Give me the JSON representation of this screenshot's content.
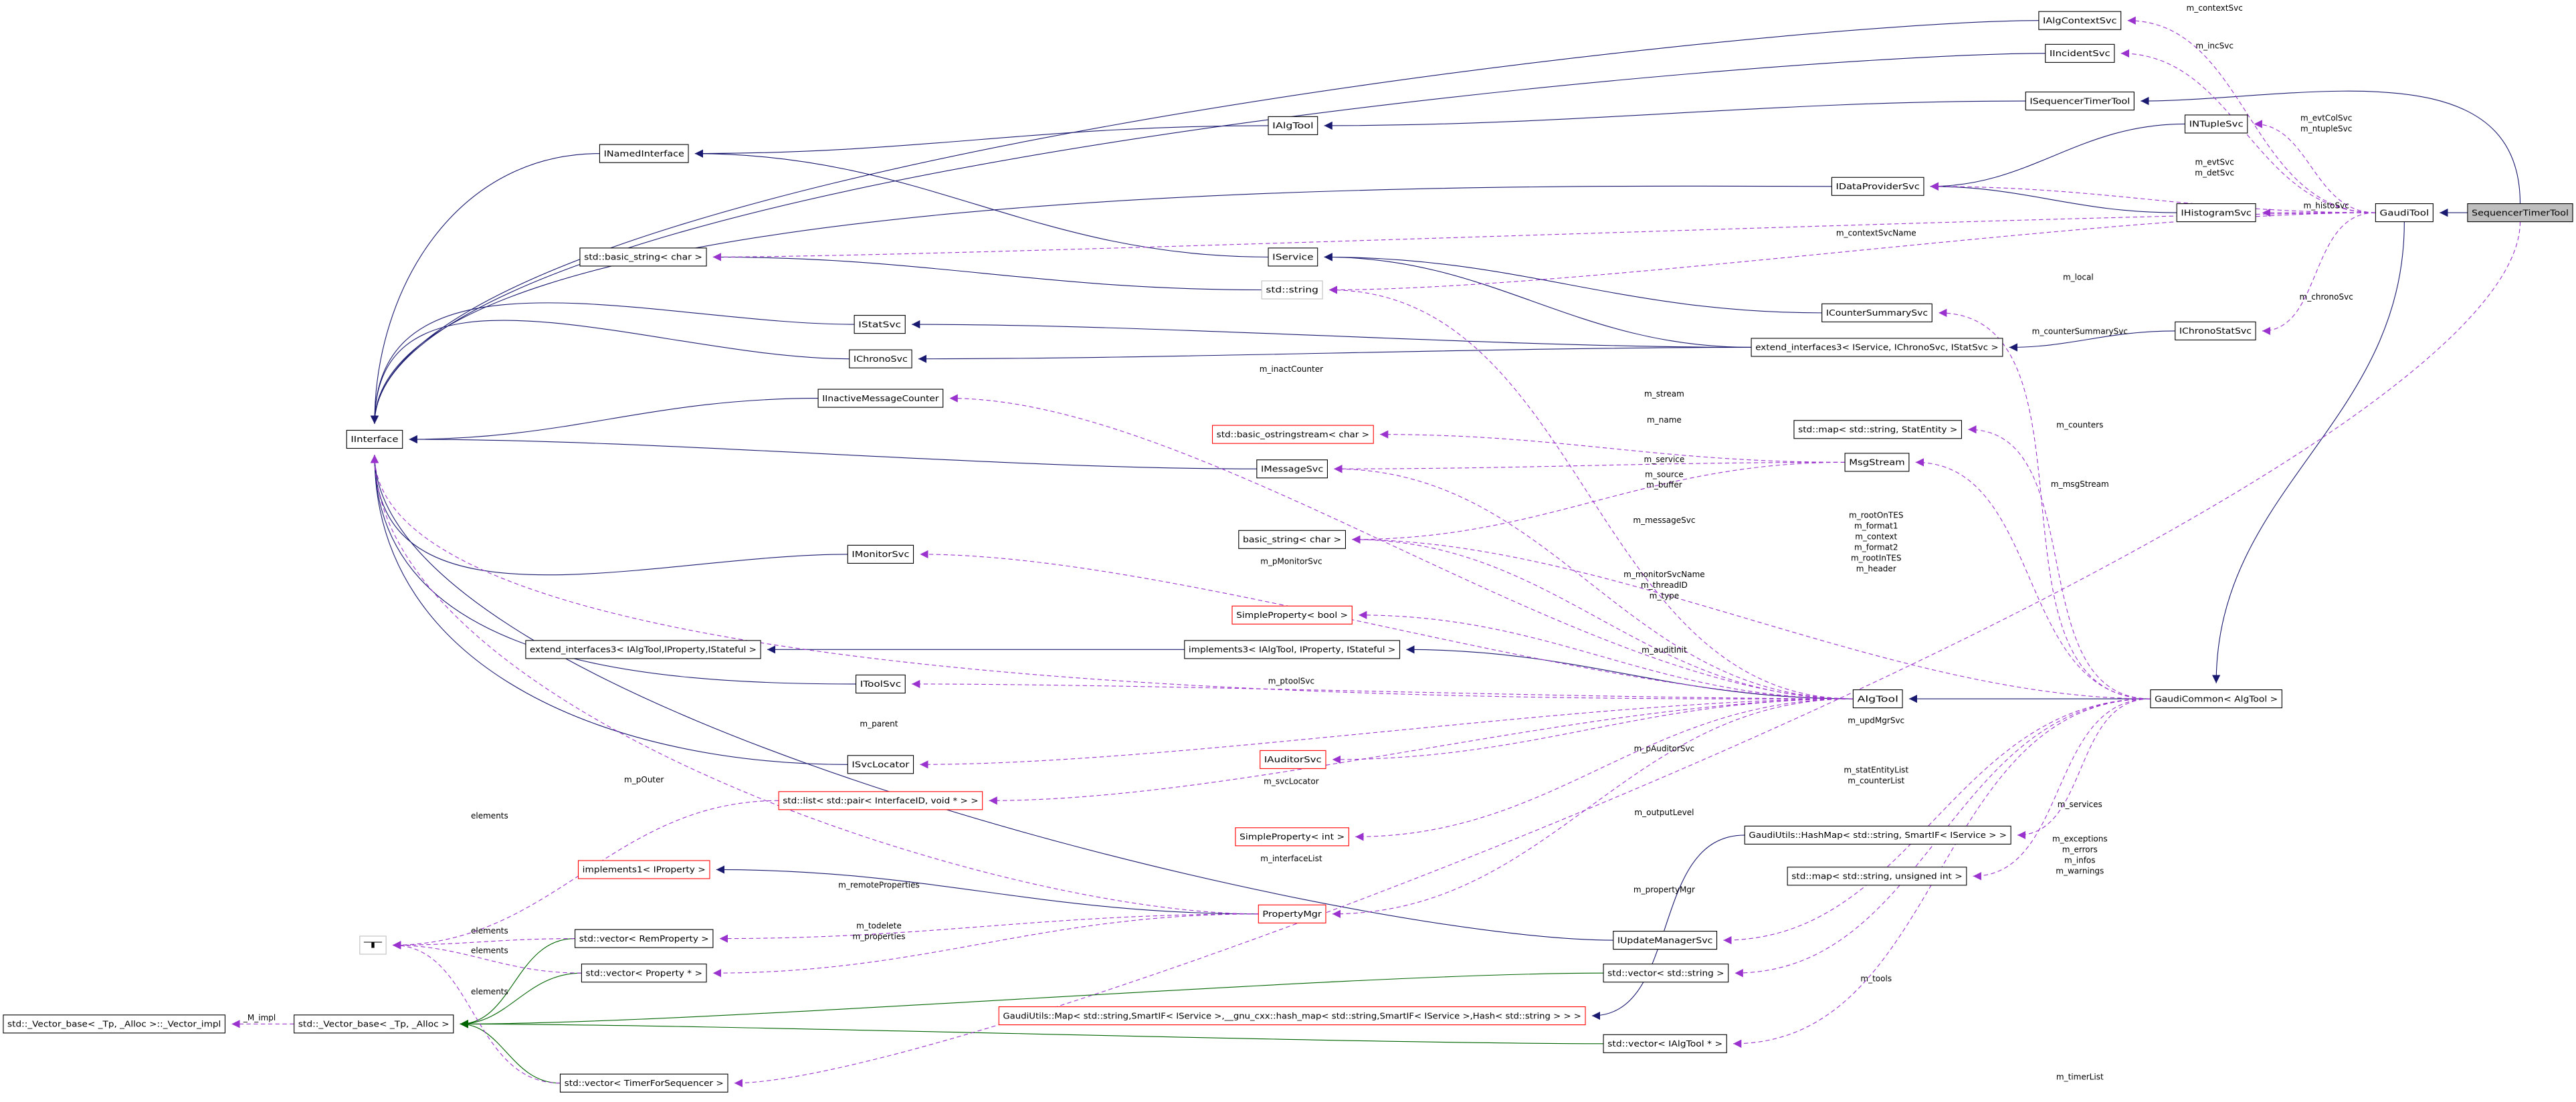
{
  "diagram": {
    "kind": "collaboration diagram",
    "focus_node": "SequencerTimerTool",
    "colors": {
      "inheritance": "#191970",
      "usage": "#9a32cd",
      "template": "#006400",
      "focus_fill": "#bfbfbf",
      "undocumented_border": "#ff0000",
      "external_border": "#bfbfbf"
    }
  },
  "nodes": [
    {
      "id": "IAlgContextSvc",
      "label": "IAlgContextSvc",
      "style": "normal"
    },
    {
      "id": "IIncidentSvc",
      "label": "IIncidentSvc",
      "style": "normal"
    },
    {
      "id": "ISequencerTimerTool",
      "label": "ISequencerTimerTool",
      "style": "normal"
    },
    {
      "id": "INTupleSvc",
      "label": "INTupleSvc",
      "style": "normal"
    },
    {
      "id": "IAlgTool",
      "label": "IAlgTool",
      "style": "normal"
    },
    {
      "id": "INamedInterface",
      "label": "INamedInterface",
      "style": "normal"
    },
    {
      "id": "IDataProviderSvc",
      "label": "IDataProviderSvc",
      "style": "normal"
    },
    {
      "id": "IHistogramSvc",
      "label": "IHistogramSvc",
      "style": "normal"
    },
    {
      "id": "GaudiTool",
      "label": "GaudiTool",
      "style": "normal"
    },
    {
      "id": "SequencerTimerTool",
      "label": "SequencerTimerTool",
      "style": "focus"
    },
    {
      "id": "basic_string_std",
      "label": "std::basic_string< char >",
      "style": "normal"
    },
    {
      "id": "IService",
      "label": "IService",
      "style": "normal"
    },
    {
      "id": "std_string",
      "label": "std::string",
      "style": "gray"
    },
    {
      "id": "ICounterSummarySvc",
      "label": "ICounterSummarySvc",
      "style": "normal"
    },
    {
      "id": "IChronoStatSvc",
      "label": "IChronoStatSvc",
      "style": "normal"
    },
    {
      "id": "IStatSvc",
      "label": "IStatSvc",
      "style": "normal"
    },
    {
      "id": "ext3svc",
      "label": "extend_interfaces3< IService, IChronoSvc, IStatSvc >",
      "style": "normal"
    },
    {
      "id": "IChronoSvc",
      "label": "IChronoSvc",
      "style": "normal"
    },
    {
      "id": "IInactiveMessageCounter",
      "label": "IInactiveMessageCounter",
      "style": "normal"
    },
    {
      "id": "IInterface",
      "label": "IInterface",
      "style": "normal"
    },
    {
      "id": "ostringstream",
      "label": "std::basic_ostringstream< char >",
      "style": "red"
    },
    {
      "id": "map_stat",
      "label": "std::map< std::string, StatEntity >",
      "style": "normal"
    },
    {
      "id": "MsgStream",
      "label": "MsgStream",
      "style": "normal"
    },
    {
      "id": "IMessageSvc",
      "label": "IMessageSvc",
      "style": "normal"
    },
    {
      "id": "basic_string",
      "label": "basic_string< char >",
      "style": "normal"
    },
    {
      "id": "IMonitorSvc",
      "label": "IMonitorSvc",
      "style": "normal"
    },
    {
      "id": "sp_bool",
      "label": "SimpleProperty< bool >",
      "style": "red"
    },
    {
      "id": "ext3alg",
      "label": "extend_interfaces3< IAlgTool,IProperty,IStateful >",
      "style": "normal"
    },
    {
      "id": "impl3",
      "label": "implements3< IAlgTool, IProperty, IStateful >",
      "style": "normal"
    },
    {
      "id": "IToolSvc",
      "label": "IToolSvc",
      "style": "normal"
    },
    {
      "id": "AlgTool",
      "label": "AlgTool",
      "style": "normal"
    },
    {
      "id": "GaudiCommon",
      "label": "GaudiCommon< AlgTool >",
      "style": "normal"
    },
    {
      "id": "ISvcLocator",
      "label": "ISvcLocator",
      "style": "normal"
    },
    {
      "id": "IAuditorSvc",
      "label": "IAuditorSvc",
      "style": "red"
    },
    {
      "id": "list_pair",
      "label": "std::list< std::pair< InterfaceID, void * > >",
      "style": "red"
    },
    {
      "id": "hashmap",
      "label": "GaudiUtils::HashMap< std::string, SmartIF< IService > >",
      "style": "normal"
    },
    {
      "id": "sp_int",
      "label": "SimpleProperty< int >",
      "style": "red"
    },
    {
      "id": "impl1",
      "label": "implements1< IProperty >",
      "style": "red"
    },
    {
      "id": "map_uint",
      "label": "std::map< std::string, unsigned int >",
      "style": "normal"
    },
    {
      "id": "T",
      "label": "T",
      "style": "gray"
    },
    {
      "id": "vec_rem",
      "label": "std::vector< RemProperty >",
      "style": "normal"
    },
    {
      "id": "PropertyMgr",
      "label": "PropertyMgr",
      "style": "red"
    },
    {
      "id": "IUpdateManagerSvc",
      "label": "IUpdateManagerSvc",
      "style": "normal"
    },
    {
      "id": "vec_prop",
      "label": "std::vector< Property * >",
      "style": "normal"
    },
    {
      "id": "vec_str",
      "label": "std::vector< std::string >",
      "style": "normal"
    },
    {
      "id": "vimpl",
      "label": "std::_Vector_base< _Tp, _Alloc >::_Vector_impl",
      "style": "normal"
    },
    {
      "id": "vbase",
      "label": "std::_Vector_base< _Tp, _Alloc >",
      "style": "normal"
    },
    {
      "id": "gmap",
      "label": "GaudiUtils::Map< std::string,SmartIF< IService >,__gnu_cxx::hash_map< std::string,SmartIF< IService >,Hash< std::string > > >",
      "style": "red"
    },
    {
      "id": "vec_algtool",
      "label": "std::vector< IAlgTool * >",
      "style": "normal"
    },
    {
      "id": "vec_timer",
      "label": "std::vector< TimerForSequencer >",
      "style": "normal"
    }
  ],
  "edges": [
    {
      "from": "IAlgContextSvc",
      "to": "IInterface",
      "type": "inheritance"
    },
    {
      "from": "IIncidentSvc",
      "to": "IInterface",
      "type": "inheritance"
    },
    {
      "from": "ISequencerTimerTool",
      "to": "IAlgTool",
      "type": "inheritance"
    },
    {
      "from": "IAlgTool",
      "to": "INamedInterface",
      "type": "inheritance"
    },
    {
      "from": "INamedInterface",
      "to": "IInterface",
      "type": "inheritance"
    },
    {
      "from": "IDataProviderSvc",
      "to": "IInterface",
      "type": "inheritance"
    },
    {
      "from": "INTupleSvc",
      "to": "IDataProviderSvc",
      "type": "inheritance"
    },
    {
      "from": "IHistogramSvc",
      "to": "IDataProviderSvc",
      "type": "inheritance"
    },
    {
      "from": "SequencerTimerTool",
      "to": "GaudiTool",
      "type": "inheritance"
    },
    {
      "from": "SequencerTimerTool",
      "to": "ISequencerTimerTool",
      "type": "inheritance"
    },
    {
      "from": "IService",
      "to": "INamedInterface",
      "type": "inheritance"
    },
    {
      "from": "std_string",
      "to": "basic_string_std",
      "type": "inheritance"
    },
    {
      "from": "ICounterSummarySvc",
      "to": "IService",
      "type": "inheritance"
    },
    {
      "from": "ext3svc",
      "to": "IService",
      "type": "inheritance"
    },
    {
      "from": "ext3svc",
      "to": "IStatSvc",
      "type": "inheritance"
    },
    {
      "from": "ext3svc",
      "to": "IChronoSvc",
      "type": "inheritance"
    },
    {
      "from": "IChronoStatSvc",
      "to": "ext3svc",
      "type": "inheritance"
    },
    {
      "from": "IStatSvc",
      "to": "IInterface",
      "type": "inheritance"
    },
    {
      "from": "IChronoSvc",
      "to": "IInterface",
      "type": "inheritance"
    },
    {
      "from": "IInactiveMessageCounter",
      "to": "IInterface",
      "type": "inheritance"
    },
    {
      "from": "IMessageSvc",
      "to": "IInterface",
      "type": "inheritance"
    },
    {
      "from": "IMonitorSvc",
      "to": "IInterface",
      "type": "inheritance"
    },
    {
      "from": "IToolSvc",
      "to": "IInterface",
      "type": "inheritance"
    },
    {
      "from": "ISvcLocator",
      "to": "IInterface",
      "type": "inheritance"
    },
    {
      "from": "IUpdateManagerSvc",
      "to": "IInterface",
      "type": "inheritance"
    },
    {
      "from": "impl3",
      "to": "ext3alg",
      "type": "inheritance"
    },
    {
      "from": "AlgTool",
      "to": "impl3",
      "type": "inheritance"
    },
    {
      "from": "GaudiCommon",
      "to": "AlgTool",
      "type": "inheritance"
    },
    {
      "from": "GaudiTool",
      "to": "GaudiCommon",
      "type": "inheritance"
    },
    {
      "from": "PropertyMgr",
      "to": "impl1",
      "type": "inheritance"
    },
    {
      "from": "hashmap",
      "to": "gmap",
      "type": "inheritance"
    },
    {
      "from": "vec_rem",
      "to": "vbase",
      "type": "template"
    },
    {
      "from": "vec_prop",
      "to": "vbase",
      "type": "template"
    },
    {
      "from": "vec_str",
      "to": "vbase",
      "type": "template"
    },
    {
      "from": "vec_algtool",
      "to": "vbase",
      "type": "template"
    },
    {
      "from": "vec_timer",
      "to": "vbase",
      "type": "template"
    },
    {
      "from": "GaudiTool",
      "to": "IAlgContextSvc",
      "type": "usage",
      "label": [
        "m_contextSvc"
      ]
    },
    {
      "from": "GaudiTool",
      "to": "IIncidentSvc",
      "type": "usage",
      "label": [
        "m_incSvc"
      ]
    },
    {
      "from": "GaudiTool",
      "to": "INTupleSvc",
      "type": "usage",
      "label": [
        "m_evtColSvc",
        "m_ntupleSvc"
      ]
    },
    {
      "from": "GaudiTool",
      "to": "IDataProviderSvc",
      "type": "usage",
      "label": [
        "m_evtSvc",
        "m_detSvc"
      ]
    },
    {
      "from": "GaudiTool",
      "to": "IHistogramSvc",
      "type": "usage",
      "label": [
        "m_histoSvc"
      ]
    },
    {
      "from": "GaudiTool",
      "to": "basic_string_std",
      "type": "usage",
      "label": [
        "m_contextSvcName"
      ]
    },
    {
      "from": "GaudiTool",
      "to": "std_string",
      "type": "usage",
      "label": [
        "m_local"
      ]
    },
    {
      "from": "GaudiTool",
      "to": "IChronoStatSvc",
      "type": "usage",
      "label": [
        "m_chronoSvc"
      ]
    },
    {
      "from": "GaudiCommon",
      "to": "ICounterSummarySvc",
      "type": "usage",
      "label": [
        "m_counterSummarySvc"
      ]
    },
    {
      "from": "GaudiCommon",
      "to": "map_stat",
      "type": "usage",
      "label": [
        "m_counters"
      ]
    },
    {
      "from": "GaudiCommon",
      "to": "MsgStream",
      "type": "usage",
      "label": [
        "m_msgStream"
      ]
    },
    {
      "from": "GaudiCommon",
      "to": "basic_string",
      "type": "usage",
      "label": [
        "m_rootOnTES",
        "m_format1",
        "m_context",
        "m_format2",
        "m_rootInTES",
        "m_header"
      ]
    },
    {
      "from": "GaudiCommon",
      "to": "IUpdateManagerSvc",
      "type": "usage",
      "label": [
        "m_updMgrSvc"
      ]
    },
    {
      "from": "GaudiCommon",
      "to": "vec_str",
      "type": "usage",
      "label": [
        "m_statEntityList",
        "m_counterList"
      ]
    },
    {
      "from": "GaudiCommon",
      "to": "hashmap",
      "type": "usage",
      "label": [
        "m_services"
      ]
    },
    {
      "from": "GaudiCommon",
      "to": "map_uint",
      "type": "usage",
      "label": [
        "m_exceptions",
        "m_errors",
        "m_infos",
        "m_warnings"
      ]
    },
    {
      "from": "GaudiCommon",
      "to": "vec_algtool",
      "type": "usage",
      "label": [
        "m_tools"
      ]
    },
    {
      "from": "SequencerTimerTool",
      "to": "vec_timer",
      "type": "usage",
      "label": [
        "m_timerList"
      ]
    },
    {
      "from": "AlgTool",
      "to": "IInactiveMessageCounter",
      "type": "usage",
      "label": [
        "m_inactCounter"
      ]
    },
    {
      "from": "MsgStream",
      "to": "ostringstream",
      "type": "usage",
      "label": [
        "m_stream"
      ]
    },
    {
      "from": "AlgTool",
      "to": "std_string",
      "type": "usage",
      "label": [
        "m_name"
      ]
    },
    {
      "from": "MsgStream",
      "to": "IMessageSvc",
      "type": "usage",
      "label": [
        "m_service"
      ]
    },
    {
      "from": "MsgStream",
      "to": "basic_string",
      "type": "usage",
      "label": [
        "m_source",
        "m_buffer"
      ]
    },
    {
      "from": "AlgTool",
      "to": "IMessageSvc",
      "type": "usage",
      "label": [
        "m_messageSvc"
      ]
    },
    {
      "from": "AlgTool",
      "to": "IMonitorSvc",
      "type": "usage",
      "label": [
        "m_pMonitorSvc"
      ]
    },
    {
      "from": "AlgTool",
      "to": "basic_string",
      "type": "usage",
      "label": [
        "m_monitorSvcName",
        "m_threadID",
        "m_type"
      ]
    },
    {
      "from": "AlgTool",
      "to": "sp_bool",
      "type": "usage",
      "label": [
        "m_auditInit"
      ]
    },
    {
      "from": "AlgTool",
      "to": "IToolSvc",
      "type": "usage",
      "label": [
        "m_ptoolSvc"
      ]
    },
    {
      "from": "AlgTool",
      "to": "IInterface",
      "type": "usage",
      "label": [
        "m_parent"
      ]
    },
    {
      "from": "AlgTool",
      "to": "IAuditorSvc",
      "type": "usage",
      "label": [
        "m_pAuditorSvc"
      ]
    },
    {
      "from": "AlgTool",
      "to": "ISvcLocator",
      "type": "usage",
      "label": [
        "m_svcLocator"
      ]
    },
    {
      "from": "AlgTool",
      "to": "sp_int",
      "type": "usage",
      "label": [
        "m_outputLevel"
      ]
    },
    {
      "from": "AlgTool",
      "to": "list_pair",
      "type": "usage",
      "label": [
        "m_interfaceList"
      ]
    },
    {
      "from": "AlgTool",
      "to": "PropertyMgr",
      "type": "usage",
      "label": [
        "m_propertyMgr"
      ]
    },
    {
      "from": "PropertyMgr",
      "to": "IInterface",
      "type": "usage",
      "label": [
        "m_pOuter"
      ]
    },
    {
      "from": "PropertyMgr",
      "to": "vec_rem",
      "type": "usage",
      "label": [
        "m_remoteProperties"
      ]
    },
    {
      "from": "PropertyMgr",
      "to": "vec_prop",
      "type": "usage",
      "label": [
        "m_todelete",
        "m_properties"
      ]
    },
    {
      "from": "list_pair",
      "to": "T",
      "type": "usage",
      "label": [
        "elements"
      ]
    },
    {
      "from": "vec_rem",
      "to": "T",
      "type": "usage",
      "label": [
        "elements"
      ]
    },
    {
      "from": "vec_prop",
      "to": "T",
      "type": "usage",
      "label": [
        "elements"
      ]
    },
    {
      "from": "vec_timer",
      "to": "T",
      "type": "usage",
      "label": [
        "elements"
      ]
    },
    {
      "from": "vbase",
      "to": "vimpl",
      "type": "usage",
      "label": [
        "_M_impl"
      ]
    }
  ]
}
